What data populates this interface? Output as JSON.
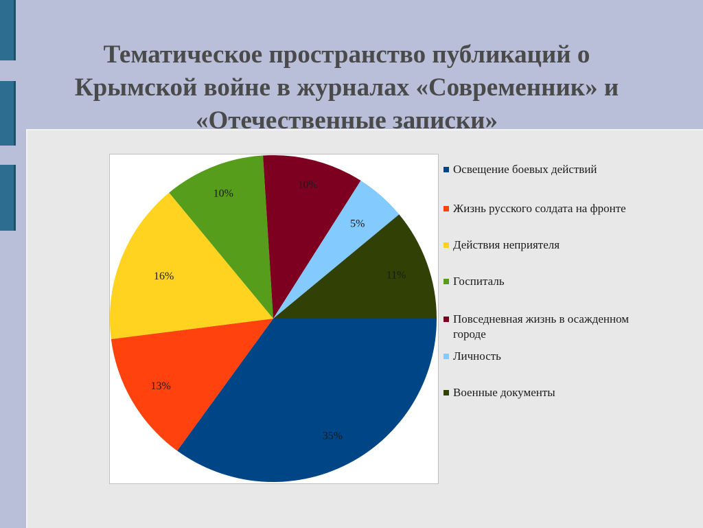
{
  "slide": {
    "title": "Тематическое пространство публикаций о Крымской войне в журналах «Современник» и «Отечественные записки»"
  },
  "chart_data": {
    "type": "pie",
    "title": "",
    "legend_position": "right",
    "slices": [
      {
        "name": "Освещение боевых действий",
        "value": 35,
        "label": "35%",
        "color": "#004586"
      },
      {
        "name": "Жизнь русского солдата на фронте",
        "value": 13,
        "label": "13%",
        "color": "#ff420e"
      },
      {
        "name": "Действия неприятеля",
        "value": 16,
        "label": "16%",
        "color": "#ffd320"
      },
      {
        "name": "Госпиталь",
        "value": 10,
        "label": "10%",
        "color": "#579d1c"
      },
      {
        "name": "Повседневная жизнь в осажденном городе",
        "value": 10,
        "label": "10%",
        "color": "#7e0021"
      },
      {
        "name": "Личность",
        "value": 5,
        "label": "5%",
        "color": "#83caff"
      },
      {
        "name": "Военные документы",
        "value": 11,
        "label": "11%",
        "color": "#314004"
      }
    ]
  }
}
